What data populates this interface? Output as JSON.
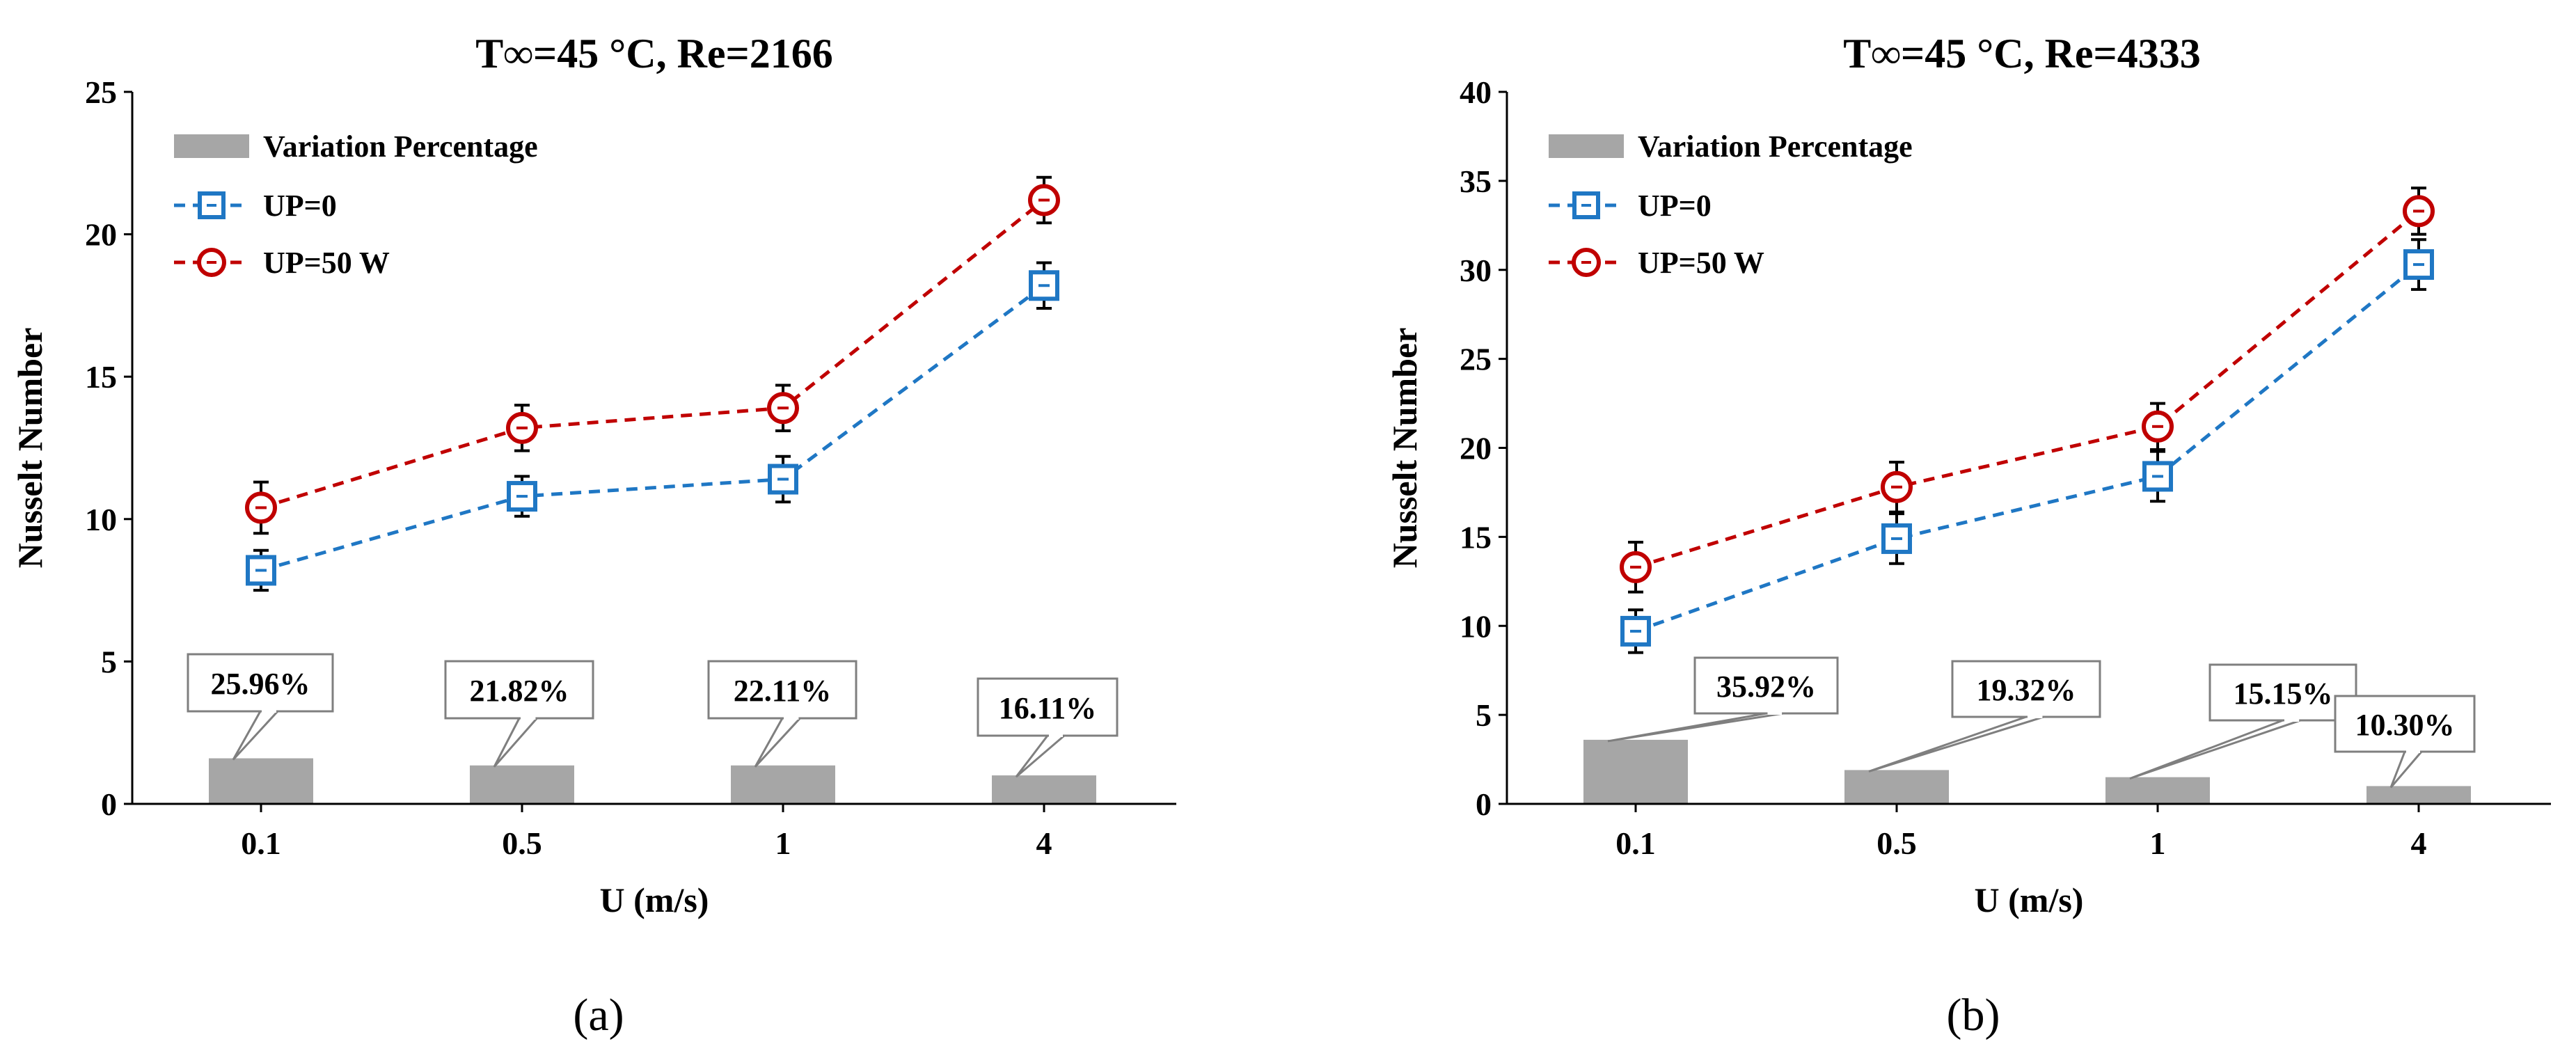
{
  "colors": {
    "up0": "#1f77c4",
    "up50": "#c00000",
    "bar": "#a6a6a6",
    "error": "#000000",
    "axis": "#000000"
  },
  "legend": {
    "bar_label": "Variation Percentage",
    "up0_label": "UP=0",
    "up50_label": "UP=50 W"
  },
  "chart_data": [
    {
      "type": "line",
      "panel_label": "(a)",
      "title": "T∞=45 °C, Re=2166",
      "xlabel": "U (m/s)",
      "ylabel": "Nusselt Number",
      "categories": [
        "0.1",
        "0.5",
        "1",
        "4"
      ],
      "ylim": [
        0,
        25
      ],
      "yticks": [
        0,
        5,
        10,
        15,
        20,
        25
      ],
      "series": [
        {
          "name": "UP=0",
          "values": [
            8.2,
            10.8,
            11.4,
            18.2
          ],
          "errors": [
            0.7,
            0.7,
            0.8,
            0.8
          ]
        },
        {
          "name": "UP=50 W",
          "values": [
            10.4,
            13.2,
            13.9,
            21.2
          ],
          "errors": [
            0.9,
            0.8,
            0.8,
            0.8
          ]
        }
      ],
      "bars": {
        "name": "Variation Percentage",
        "values": [
          1.6,
          1.35,
          1.35,
          1.0
        ]
      },
      "callouts": [
        "25.96%",
        "21.82%",
        "22.11%",
        "16.11%"
      ]
    },
    {
      "type": "line",
      "panel_label": "(b)",
      "title": "T∞=45 °C, Re=4333",
      "xlabel": "U (m/s)",
      "ylabel": "Nusselt Number",
      "categories": [
        "0.1",
        "0.5",
        "1",
        "4"
      ],
      "ylim": [
        0,
        40
      ],
      "yticks": [
        0,
        5,
        10,
        15,
        20,
        25,
        30,
        35,
        40
      ],
      "series": [
        {
          "name": "UP=0",
          "values": [
            9.7,
            14.9,
            18.4,
            30.3
          ],
          "errors": [
            1.2,
            1.4,
            1.4,
            1.4
          ]
        },
        {
          "name": "UP=50 W",
          "values": [
            13.3,
            17.8,
            21.2,
            33.3
          ],
          "errors": [
            1.4,
            1.4,
            1.3,
            1.3
          ]
        }
      ],
      "bars": {
        "name": "Variation Percentage",
        "values": [
          3.6,
          1.9,
          1.5,
          1.0
        ]
      },
      "callouts": [
        "35.92%",
        "19.32%",
        "15.15%",
        "10.30%"
      ]
    }
  ]
}
